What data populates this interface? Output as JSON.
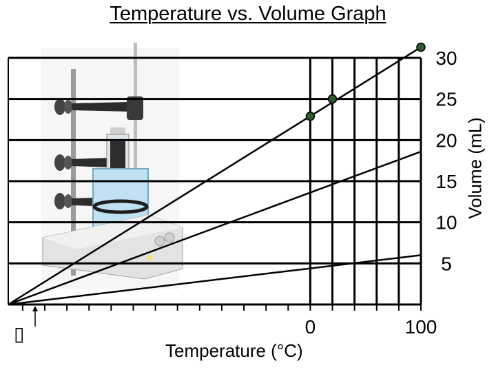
{
  "chart_data": {
    "type": "line",
    "title": "Temperature vs. Volume Graph",
    "xlabel": "Temperature (°C)",
    "ylabel": "Volume (mL)",
    "x_ticks": [
      0,
      100
    ],
    "y_ticks": [
      5,
      10,
      15,
      20,
      25,
      30
    ],
    "xlim": [
      -273,
      100
    ],
    "ylim": [
      0,
      30
    ],
    "grid": true,
    "extrapolation_origin": [
      -273,
      0
    ],
    "series": [
      {
        "x": [
          -273,
          100
        ],
        "y": [
          0,
          31.3
        ],
        "color": "#000000"
      },
      {
        "x": [
          -273,
          100
        ],
        "y": [
          0,
          18.6
        ],
        "color": "#000000"
      },
      {
        "x": [
          -273,
          100
        ],
        "y": [
          0,
          6.0
        ],
        "color": "#000000"
      }
    ],
    "points": [
      {
        "x": 0,
        "y": 22.9,
        "color": "#2e5a2e"
      },
      {
        "x": 20,
        "y": 25.0,
        "color": "#2e5a2e"
      },
      {
        "x": 100,
        "y": 31.3,
        "color": "#2e5a2e"
      }
    ]
  },
  "misc": {
    "glyph": "▯"
  }
}
